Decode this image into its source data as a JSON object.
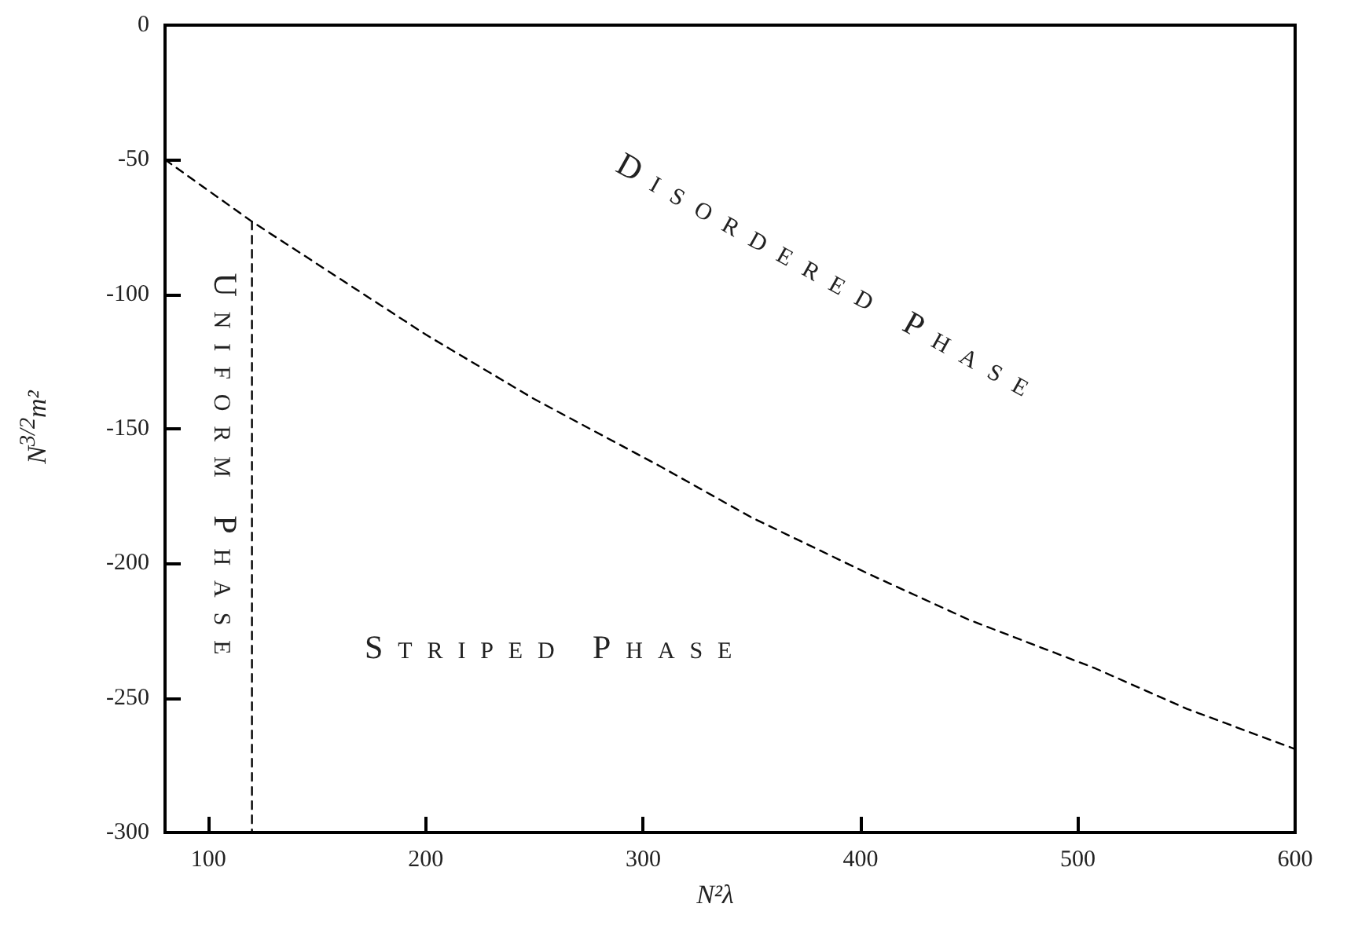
{
  "chart_data": {
    "type": "line",
    "xlabel": "N²λ",
    "ylabel": "N$^{3/2}$m²",
    "xlim": [
      80,
      600
    ],
    "xticks": [
      100,
      200,
      300,
      400,
      500,
      600
    ],
    "ylim": [
      -300,
      0
    ],
    "yticks": [
      0,
      -50,
      -100,
      -150,
      -200,
      -250,
      -300
    ],
    "grid": false,
    "marker": "none",
    "line_style": "dashed",
    "series": [
      {
        "color": "#000000",
        "x": [
          80,
          120,
          160,
          200,
          250,
          308,
          350,
          404,
          450,
          508,
          550,
          600
        ],
        "values": [
          -50,
          -73,
          -94,
          -115,
          -139,
          -164,
          -183,
          -204,
          -221,
          -239,
          -254,
          -269
        ]
      },
      {
        "color": "#000000",
        "x": [
          120,
          120
        ],
        "values": [
          -73,
          -300
        ]
      }
    ],
    "annotations": [
      "Disordered Phase",
      "Uniform Phase",
      "Striped Phase"
    ]
  }
}
